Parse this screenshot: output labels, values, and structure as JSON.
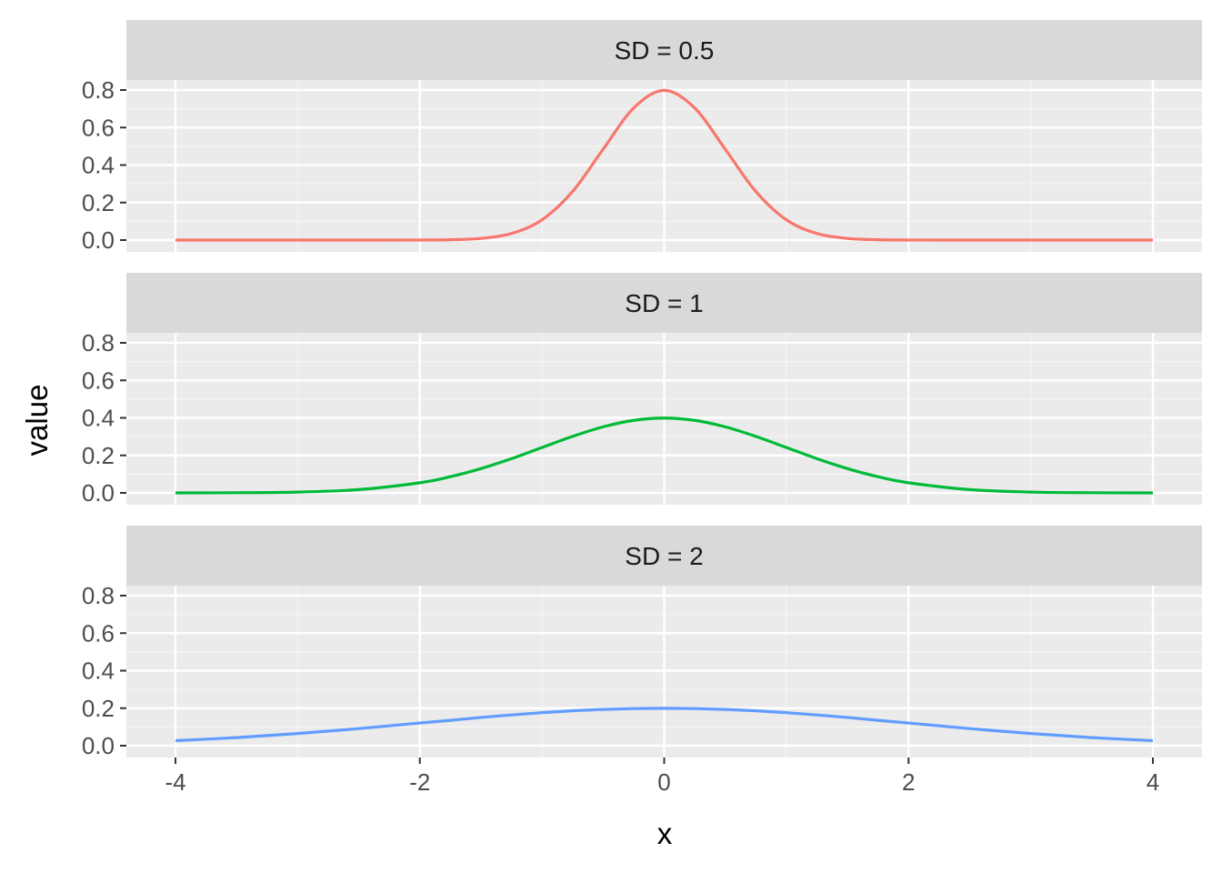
{
  "chart_data": {
    "type": "line",
    "facet_direction": "vertical",
    "xlabel": "x",
    "ylabel": "value",
    "xlim": [
      -4,
      4
    ],
    "ylim": [
      0,
      0.8
    ],
    "x_ticks": [
      -4,
      -2,
      0,
      2,
      4
    ],
    "x_tick_labels": [
      "-4",
      "-2",
      "0",
      "2",
      "4"
    ],
    "y_ticks": [
      0,
      0.2,
      0.4,
      0.6,
      0.8
    ],
    "y_tick_labels": [
      "0.0",
      "0.2",
      "0.4",
      "0.6",
      "0.8"
    ],
    "grid": true,
    "legend": "none",
    "x": [
      -4,
      -3.5,
      -3,
      -2.5,
      -2,
      -1.75,
      -1.5,
      -1.25,
      -1,
      -0.75,
      -0.5,
      -0.25,
      0,
      0.25,
      0.5,
      0.75,
      1,
      1.25,
      1.5,
      1.75,
      2,
      2.5,
      3,
      3.5,
      4
    ],
    "panels": [
      {
        "strip_label": "SD = 0.5",
        "color": "#F8766D",
        "values": [
          0.0,
          0.0,
          0.0,
          0.0,
          0.0003,
          0.0019,
          0.0089,
          0.035,
          0.108,
          0.259,
          0.484,
          0.704,
          0.798,
          0.704,
          0.484,
          0.259,
          0.108,
          0.035,
          0.0089,
          0.0019,
          0.0003,
          0.0,
          0.0,
          0.0,
          0.0
        ]
      },
      {
        "strip_label": "SD = 1",
        "color": "#00BA38",
        "values": [
          0.0001,
          0.0009,
          0.0044,
          0.0175,
          0.054,
          0.0863,
          0.1295,
          0.1826,
          0.242,
          0.3011,
          0.3521,
          0.3867,
          0.3989,
          0.3867,
          0.3521,
          0.3011,
          0.242,
          0.1826,
          0.1295,
          0.0863,
          0.054,
          0.0175,
          0.0044,
          0.0009,
          0.0001
        ]
      },
      {
        "strip_label": "SD = 2",
        "color": "#619CFF",
        "values": [
          0.027,
          0.0431,
          0.0648,
          0.0913,
          0.121,
          0.1352,
          0.1506,
          0.164,
          0.176,
          0.1862,
          0.1933,
          0.1978,
          0.1995,
          0.1978,
          0.1933,
          0.1862,
          0.176,
          0.164,
          0.1506,
          0.1352,
          0.121,
          0.0913,
          0.0648,
          0.0431,
          0.027
        ]
      }
    ]
  }
}
